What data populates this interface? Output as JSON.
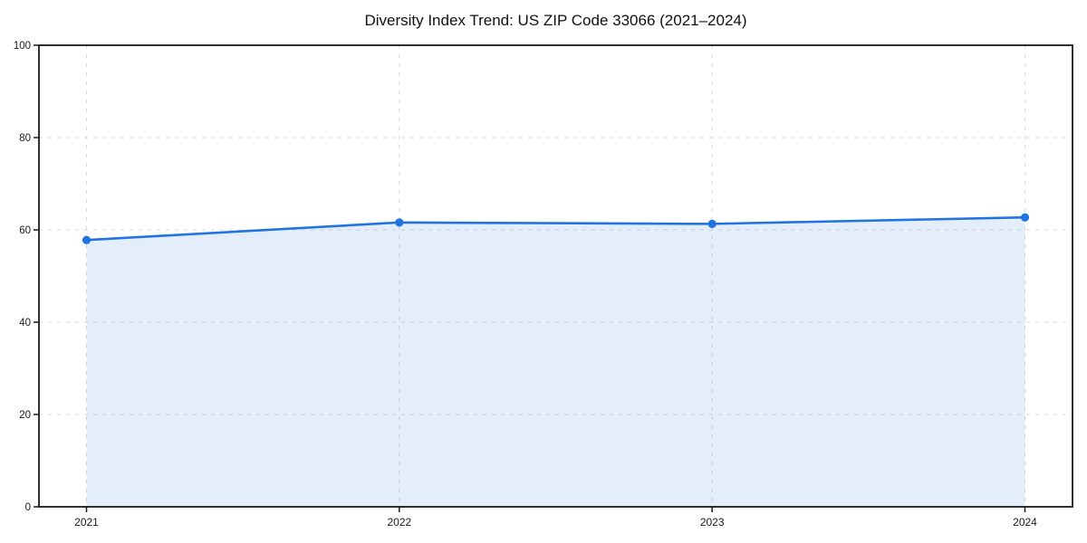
{
  "chart_data": {
    "type": "line",
    "title": "Diversity Index Trend: US ZIP Code 33066 (2021–2024)",
    "x": [
      2021,
      2022,
      2023,
      2024
    ],
    "xticks": [
      "2021",
      "2022",
      "2023",
      "2024"
    ],
    "series": [
      {
        "name": "Diversity Index",
        "values": [
          57.8,
          61.6,
          61.3,
          62.7
        ]
      }
    ],
    "xlabel": "",
    "ylabel": "",
    "ylim": [
      0,
      100
    ],
    "yticks": [
      0,
      20,
      40,
      60,
      80,
      100
    ],
    "grid": "dashed",
    "legend_position": "none",
    "area_fill": true,
    "markers": "circle",
    "colors": {
      "line": "#2273e2",
      "fill": "rgba(34,115,226,0.12)",
      "grid": "#d9d9d9",
      "spine": "#1a1a1a",
      "text": "#1a1a1a",
      "background": "#ffffff"
    }
  }
}
